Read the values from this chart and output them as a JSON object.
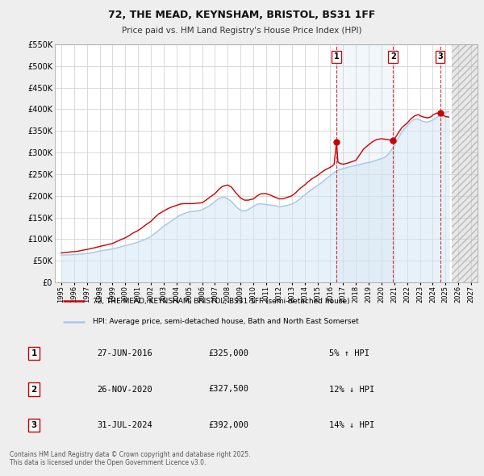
{
  "title": "72, THE MEAD, KEYNSHAM, BRISTOL, BS31 1FF",
  "subtitle": "Price paid vs. HM Land Registry's House Price Index (HPI)",
  "legend_line1": "72, THE MEAD, KEYNSHAM, BRISTOL, BS31 1FF (semi-detached house)",
  "legend_line2": "HPI: Average price, semi-detached house, Bath and North East Somerset",
  "footer": "Contains HM Land Registry data © Crown copyright and database right 2025.\nThis data is licensed under the Open Government Licence v3.0.",
  "transactions": [
    {
      "num": 1,
      "date": "27-JUN-2016",
      "price": 325000,
      "pct": "5%",
      "dir": "↑",
      "year_x": 2016.49
    },
    {
      "num": 2,
      "date": "26-NOV-2020",
      "price": 327500,
      "pct": "12%",
      "dir": "↓",
      "year_x": 2020.9
    },
    {
      "num": 3,
      "date": "31-JUL-2024",
      "price": 392000,
      "pct": "14%",
      "dir": "↓",
      "year_x": 2024.58
    }
  ],
  "hpi_color": "#a8c8e8",
  "price_color": "#cc0000",
  "marker_color": "#cc0000",
  "vline_color": "#cc0000",
  "shade_color": "#d0e4f4",
  "ylim": [
    0,
    550000
  ],
  "xlim_start": 1994.5,
  "xlim_end": 2027.5,
  "ytick_step": 50000,
  "background_color": "#eeeeee",
  "plot_bg_color": "#ffffff",
  "grid_color": "#cccccc",
  "hpi_data": [
    [
      1995,
      63000
    ],
    [
      1995.25,
      63500
    ],
    [
      1995.5,
      63200
    ],
    [
      1995.75,
      63800
    ],
    [
      1996,
      64500
    ],
    [
      1996.25,
      65000
    ],
    [
      1996.5,
      65500
    ],
    [
      1996.75,
      66000
    ],
    [
      1997,
      67000
    ],
    [
      1997.25,
      68000
    ],
    [
      1997.5,
      69500
    ],
    [
      1997.75,
      71000
    ],
    [
      1998,
      72500
    ],
    [
      1998.25,
      74000
    ],
    [
      1998.5,
      75000
    ],
    [
      1998.75,
      76000
    ],
    [
      1999,
      77500
    ],
    [
      1999.25,
      79000
    ],
    [
      1999.5,
      81000
    ],
    [
      1999.75,
      83000
    ],
    [
      2000,
      85000
    ],
    [
      2000.25,
      87000
    ],
    [
      2000.5,
      89000
    ],
    [
      2000.75,
      91000
    ],
    [
      2001,
      93000
    ],
    [
      2001.25,
      96000
    ],
    [
      2001.5,
      99000
    ],
    [
      2001.75,
      102000
    ],
    [
      2002,
      106000
    ],
    [
      2002.25,
      112000
    ],
    [
      2002.5,
      118000
    ],
    [
      2002.75,
      124000
    ],
    [
      2003,
      130000
    ],
    [
      2003.25,
      135000
    ],
    [
      2003.5,
      140000
    ],
    [
      2003.75,
      145000
    ],
    [
      2004,
      150000
    ],
    [
      2004.25,
      155000
    ],
    [
      2004.5,
      158000
    ],
    [
      2004.75,
      161000
    ],
    [
      2005,
      163000
    ],
    [
      2005.25,
      164000
    ],
    [
      2005.5,
      165000
    ],
    [
      2005.75,
      166000
    ],
    [
      2006,
      168000
    ],
    [
      2006.25,
      172000
    ],
    [
      2006.5,
      176000
    ],
    [
      2006.75,
      181000
    ],
    [
      2007,
      187000
    ],
    [
      2007.25,
      193000
    ],
    [
      2007.5,
      196000
    ],
    [
      2007.75,
      197000
    ],
    [
      2008,
      193000
    ],
    [
      2008.25,
      188000
    ],
    [
      2008.5,
      180000
    ],
    [
      2008.75,
      172000
    ],
    [
      2009,
      167000
    ],
    [
      2009.25,
      165000
    ],
    [
      2009.5,
      167000
    ],
    [
      2009.75,
      171000
    ],
    [
      2010,
      176000
    ],
    [
      2010.25,
      180000
    ],
    [
      2010.5,
      182000
    ],
    [
      2010.75,
      181000
    ],
    [
      2011,
      180000
    ],
    [
      2011.25,
      179000
    ],
    [
      2011.5,
      178000
    ],
    [
      2011.75,
      177000
    ],
    [
      2012,
      175000
    ],
    [
      2012.25,
      176000
    ],
    [
      2012.5,
      177000
    ],
    [
      2012.75,
      179000
    ],
    [
      2013,
      181000
    ],
    [
      2013.25,
      185000
    ],
    [
      2013.5,
      190000
    ],
    [
      2013.75,
      196000
    ],
    [
      2014,
      202000
    ],
    [
      2014.25,
      208000
    ],
    [
      2014.5,
      214000
    ],
    [
      2014.75,
      219000
    ],
    [
      2015,
      224000
    ],
    [
      2015.25,
      229000
    ],
    [
      2015.5,
      235000
    ],
    [
      2015.75,
      241000
    ],
    [
      2016,
      247000
    ],
    [
      2016.25,
      253000
    ],
    [
      2016.5,
      258000
    ],
    [
      2016.75,
      261000
    ],
    [
      2017,
      263000
    ],
    [
      2017.25,
      265000
    ],
    [
      2017.5,
      267000
    ],
    [
      2017.75,
      269000
    ],
    [
      2018,
      270000
    ],
    [
      2018.25,
      272000
    ],
    [
      2018.5,
      274000
    ],
    [
      2018.75,
      276000
    ],
    [
      2019,
      277000
    ],
    [
      2019.25,
      279000
    ],
    [
      2019.5,
      281000
    ],
    [
      2019.75,
      284000
    ],
    [
      2020,
      286000
    ],
    [
      2020.25,
      289000
    ],
    [
      2020.5,
      295000
    ],
    [
      2020.75,
      305000
    ],
    [
      2021,
      317000
    ],
    [
      2021.25,
      330000
    ],
    [
      2021.5,
      343000
    ],
    [
      2021.75,
      354000
    ],
    [
      2022,
      362000
    ],
    [
      2022.25,
      370000
    ],
    [
      2022.5,
      376000
    ],
    [
      2022.75,
      378000
    ],
    [
      2023,
      375000
    ],
    [
      2023.25,
      372000
    ],
    [
      2023.5,
      370000
    ],
    [
      2023.75,
      372000
    ],
    [
      2024,
      375000
    ],
    [
      2024.25,
      380000
    ],
    [
      2024.5,
      385000
    ],
    [
      2024.75,
      390000
    ],
    [
      2025,
      393000
    ],
    [
      2025.25,
      395000
    ]
  ],
  "price_data": [
    [
      1995,
      68000
    ],
    [
      1995.3,
      69000
    ],
    [
      1995.6,
      70000
    ],
    [
      1996,
      71000
    ],
    [
      1996.3,
      72000
    ],
    [
      1996.6,
      74000
    ],
    [
      1997,
      76000
    ],
    [
      1997.3,
      78000
    ],
    [
      1997.6,
      80000
    ],
    [
      1998,
      83000
    ],
    [
      1998.3,
      85000
    ],
    [
      1998.6,
      87000
    ],
    [
      1999,
      90000
    ],
    [
      1999.3,
      94000
    ],
    [
      1999.6,
      98000
    ],
    [
      2000,
      103000
    ],
    [
      2000.3,
      108000
    ],
    [
      2000.6,
      114000
    ],
    [
      2001,
      120000
    ],
    [
      2001.3,
      126000
    ],
    [
      2001.6,
      133000
    ],
    [
      2002,
      141000
    ],
    [
      2002.3,
      150000
    ],
    [
      2002.6,
      158000
    ],
    [
      2003,
      165000
    ],
    [
      2003.3,
      170000
    ],
    [
      2003.6,
      174000
    ],
    [
      2004,
      178000
    ],
    [
      2004.3,
      181000
    ],
    [
      2004.6,
      182000
    ],
    [
      2005,
      182000
    ],
    [
      2005.3,
      182000
    ],
    [
      2005.6,
      183000
    ],
    [
      2006,
      184000
    ],
    [
      2006.3,
      190000
    ],
    [
      2006.6,
      197000
    ],
    [
      2007,
      205000
    ],
    [
      2007.3,
      215000
    ],
    [
      2007.6,
      222000
    ],
    [
      2008,
      225000
    ],
    [
      2008.3,
      220000
    ],
    [
      2008.6,
      208000
    ],
    [
      2009,
      195000
    ],
    [
      2009.3,
      190000
    ],
    [
      2009.6,
      190000
    ],
    [
      2010,
      193000
    ],
    [
      2010.3,
      200000
    ],
    [
      2010.6,
      205000
    ],
    [
      2011,
      205000
    ],
    [
      2011.3,
      202000
    ],
    [
      2011.6,
      198000
    ],
    [
      2012,
      193000
    ],
    [
      2012.3,
      193000
    ],
    [
      2012.6,
      196000
    ],
    [
      2013,
      200000
    ],
    [
      2013.3,
      207000
    ],
    [
      2013.6,
      216000
    ],
    [
      2014,
      225000
    ],
    [
      2014.3,
      233000
    ],
    [
      2014.6,
      240000
    ],
    [
      2015,
      247000
    ],
    [
      2015.3,
      254000
    ],
    [
      2015.6,
      260000
    ],
    [
      2016,
      266000
    ],
    [
      2016.3,
      272000
    ],
    [
      2016.49,
      325000
    ],
    [
      2016.6,
      278000
    ],
    [
      2016.75,
      275000
    ],
    [
      2017,
      273000
    ],
    [
      2017.3,
      275000
    ],
    [
      2017.6,
      278000
    ],
    [
      2018,
      282000
    ],
    [
      2018.3,
      295000
    ],
    [
      2018.6,
      308000
    ],
    [
      2019,
      318000
    ],
    [
      2019.3,
      325000
    ],
    [
      2019.6,
      330000
    ],
    [
      2020,
      332000
    ],
    [
      2020.5,
      330000
    ],
    [
      2020.9,
      327500
    ],
    [
      2021,
      330000
    ],
    [
      2021.3,
      345000
    ],
    [
      2021.6,
      358000
    ],
    [
      2022,
      368000
    ],
    [
      2022.3,
      378000
    ],
    [
      2022.6,
      385000
    ],
    [
      2022.9,
      388000
    ],
    [
      2023,
      385000
    ],
    [
      2023.3,
      382000
    ],
    [
      2023.6,
      380000
    ],
    [
      2023.9,
      383000
    ],
    [
      2024,
      387000
    ],
    [
      2024.3,
      391000
    ],
    [
      2024.58,
      392000
    ],
    [
      2024.7,
      388000
    ],
    [
      2024.9,
      385000
    ],
    [
      2025,
      383000
    ],
    [
      2025.25,
      382000
    ]
  ]
}
